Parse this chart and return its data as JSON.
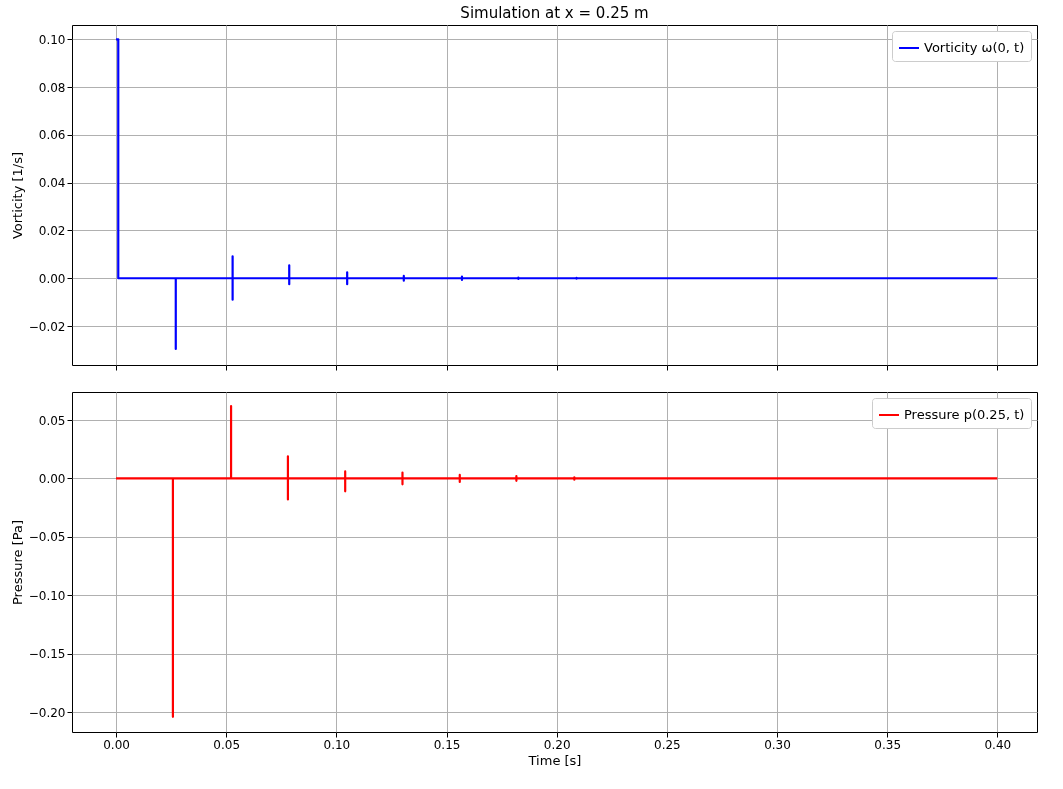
{
  "chart_data": [
    {
      "type": "line",
      "title": "Simulation at x = 0.25 m",
      "ylabel": "Vorticity [1/s]",
      "xlim": [
        -0.02,
        0.418
      ],
      "xticks": [
        {
          "value": 0,
          "label": null
        },
        {
          "value": 0.05,
          "label": null
        },
        {
          "value": 0.1,
          "label": null
        },
        {
          "value": 0.15,
          "label": null
        },
        {
          "value": 0.2,
          "label": null
        },
        {
          "value": 0.25,
          "label": null
        },
        {
          "value": 0.3,
          "label": null
        },
        {
          "value": 0.35,
          "label": null
        },
        {
          "value": 0.4,
          "label": null
        }
      ],
      "ylim": [
        -0.0363,
        0.106
      ],
      "yticks": [
        {
          "value": -0.02,
          "label": "−0.02"
        },
        {
          "value": 0,
          "label": "0.00"
        },
        {
          "value": 0.02,
          "label": "0.02"
        },
        {
          "value": 0.04,
          "label": "0.04"
        },
        {
          "value": 0.06,
          "label": "0.06"
        },
        {
          "value": 0.08,
          "label": "0.08"
        },
        {
          "value": 0.1,
          "label": "0.10"
        }
      ],
      "grid": true,
      "legend": "top right",
      "tick_labels": "y",
      "series": [
        {
          "name": "Vorticity ω(0, t)",
          "color": "#0000ff",
          "x": [
            0,
            0.001,
            0.001,
            0.0271,
            0.0271,
            0.0271,
            0.0529,
            0.0529,
            0.0529,
            0.0529,
            0.0786,
            0.0786,
            0.0786,
            0.0786,
            0.1049,
            0.1049,
            0.1049,
            0.1049,
            0.1306,
            0.1306,
            0.1306,
            0.1306,
            0.157,
            0.157,
            0.157,
            0.157,
            0.1826,
            0.1826,
            0.1826,
            0.1826,
            0.209,
            0.209,
            0.209,
            0.209,
            0.4
          ],
          "values": [
            0.1,
            0.1,
            0,
            0,
            -0.0296,
            0,
            0,
            0.0092,
            -0.009,
            0,
            0,
            0.0054,
            -0.0025,
            0,
            0,
            0.0025,
            -0.0025,
            0,
            0,
            0.001,
            -0.001,
            0,
            0,
            0.0007,
            -0.0007,
            0,
            0,
            0.0003,
            -0.0003,
            0,
            0,
            0.0002,
            -0.0002,
            0,
            0
          ]
        }
      ]
    },
    {
      "type": "line",
      "xlabel": "Time [s]",
      "ylabel": "Pressure [Pa]",
      "xlim": [
        -0.02,
        0.418
      ],
      "xticks": [
        {
          "value": 0,
          "label": "0.00"
        },
        {
          "value": 0.05,
          "label": "0.05"
        },
        {
          "value": 0.1,
          "label": "0.10"
        },
        {
          "value": 0.15,
          "label": "0.15"
        },
        {
          "value": 0.2,
          "label": "0.20"
        },
        {
          "value": 0.25,
          "label": "0.25"
        },
        {
          "value": 0.3,
          "label": "0.30"
        },
        {
          "value": 0.35,
          "label": "0.35"
        },
        {
          "value": 0.4,
          "label": "0.40"
        }
      ],
      "ylim": [
        -0.217,
        0.074
      ],
      "yticks": [
        {
          "value": -0.2,
          "label": "−0.20"
        },
        {
          "value": -0.15,
          "label": "−0.15"
        },
        {
          "value": -0.1,
          "label": "−0.10"
        },
        {
          "value": -0.05,
          "label": "−0.05"
        },
        {
          "value": 0,
          "label": "0.00"
        },
        {
          "value": 0.05,
          "label": "0.05"
        }
      ],
      "grid": true,
      "legend": "top right",
      "series": [
        {
          "name": "Pressure p(0.25, t)",
          "color": "#ff0000",
          "x": [
            0,
            0.0258,
            0.0258,
            0.0258,
            0.0522,
            0.0522,
            0.0522,
            0.078,
            0.078,
            0.078,
            0.078,
            0.104,
            0.104,
            0.104,
            0.104,
            0.13,
            0.13,
            0.13,
            0.13,
            0.156,
            0.156,
            0.156,
            0.156,
            0.1817,
            0.1817,
            0.1817,
            0.1817,
            0.208,
            0.208,
            0.208,
            0.208,
            0.4
          ],
          "values": [
            0,
            0,
            -0.204,
            0,
            0,
            0.062,
            0,
            0,
            0.019,
            -0.018,
            0,
            0,
            0.006,
            -0.011,
            0,
            0,
            0.005,
            -0.005,
            0,
            0,
            0.003,
            -0.003,
            0,
            0,
            0.002,
            -0.002,
            0,
            0,
            0.001,
            -0.001,
            0,
            0
          ]
        }
      ]
    }
  ]
}
